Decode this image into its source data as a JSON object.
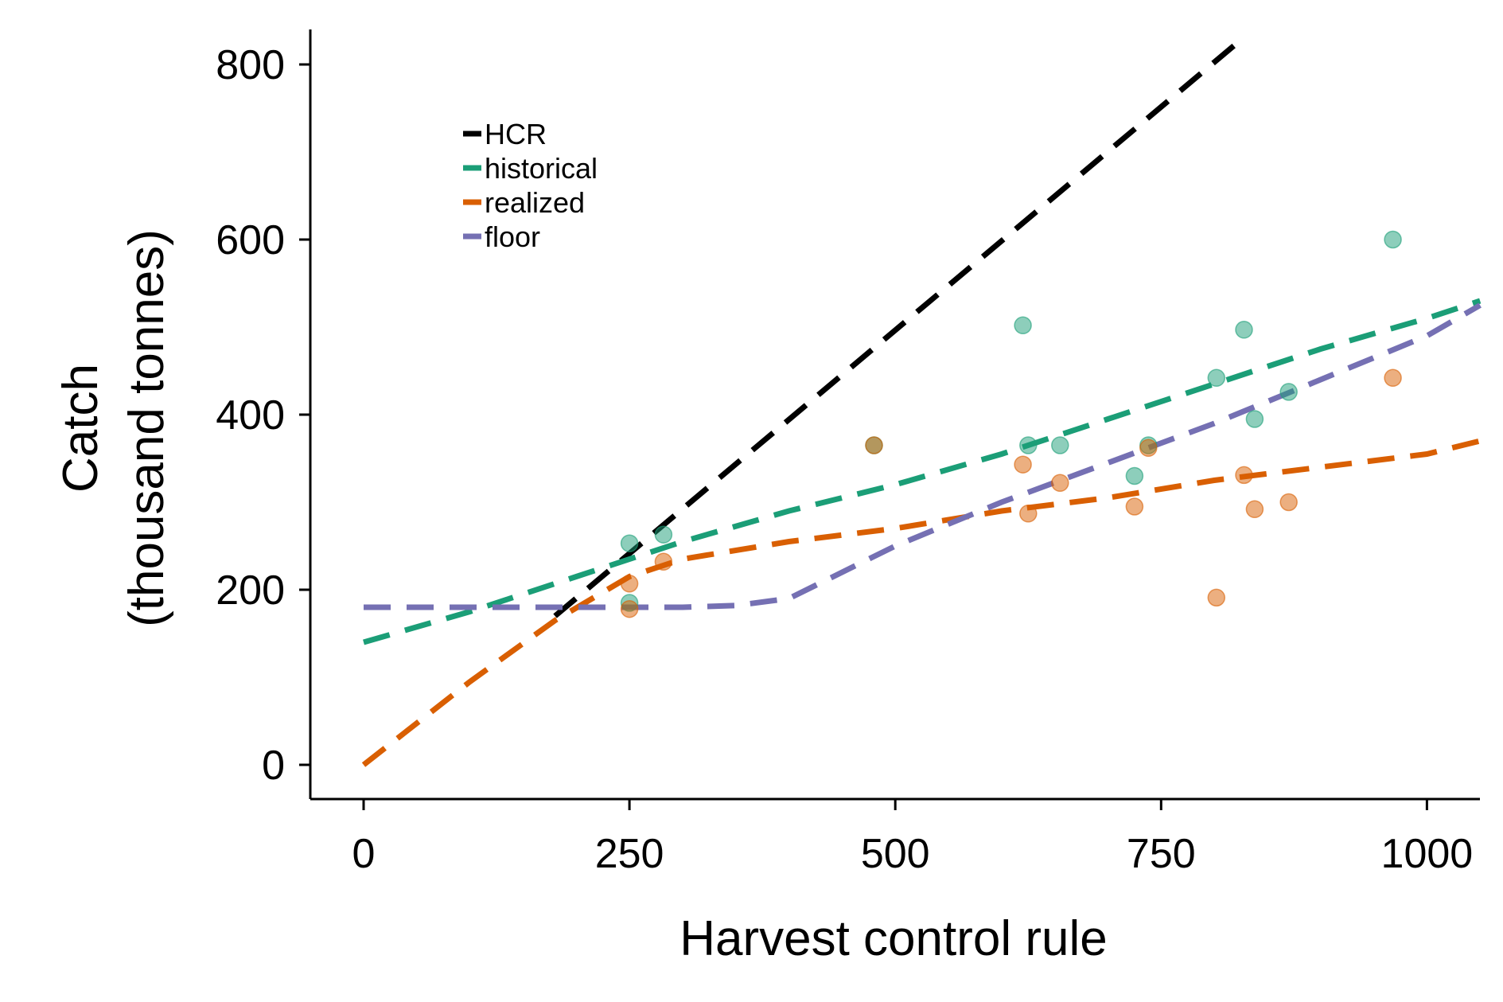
{
  "chart_data": {
    "type": "scatter",
    "xlabel": "Harvest control rule",
    "ylabel": [
      "Catch",
      "(thousand tonnes)"
    ],
    "xlim": [
      -25,
      1050
    ],
    "ylim": [
      -40,
      840
    ],
    "xticks": [
      0,
      250,
      500,
      750,
      1000
    ],
    "yticks": [
      0,
      200,
      400,
      600,
      800
    ],
    "grid": false,
    "legend_position": "top-left",
    "lines": [
      {
        "name": "HCR",
        "color": "#000000",
        "x": [
          180,
          822
        ],
        "y": [
          170,
          825
        ]
      },
      {
        "name": "historical",
        "color": "#1b9e77",
        "x": [
          0,
          100,
          200,
          300,
          400,
          500,
          600,
          700,
          800,
          900,
          1000,
          1050
        ],
        "y": [
          140,
          175,
          215,
          255,
          290,
          320,
          355,
          395,
          435,
          475,
          510,
          530
        ]
      },
      {
        "name": "realized",
        "color": "#d95f02",
        "x": [
          0,
          100,
          180,
          250,
          300,
          400,
          500,
          600,
          700,
          800,
          900,
          1000,
          1050
        ],
        "y": [
          0,
          95,
          165,
          215,
          235,
          255,
          270,
          290,
          305,
          325,
          340,
          355,
          370
        ]
      },
      {
        "name": "floor",
        "color": "#7570b3",
        "x": [
          0,
          100,
          200,
          300,
          350,
          400,
          450,
          500,
          600,
          700,
          800,
          900,
          1000,
          1050
        ],
        "y": [
          180,
          180,
          180,
          180,
          182,
          190,
          220,
          250,
          300,
          345,
          390,
          440,
          490,
          525
        ]
      }
    ],
    "points": [
      {
        "name": "historical",
        "color": "#1b9e77",
        "x": [
          250,
          250,
          282,
          480,
          620,
          625,
          655,
          725,
          738,
          802,
          828,
          838,
          870,
          968
        ],
        "y": [
          253,
          185,
          263,
          365,
          502,
          365,
          365,
          330,
          365,
          442,
          497,
          395,
          426,
          600
        ]
      },
      {
        "name": "realized",
        "color": "#d95f02",
        "x": [
          250,
          250,
          282,
          480,
          620,
          625,
          655,
          725,
          738,
          802,
          828,
          838,
          870,
          968
        ],
        "y": [
          207,
          178,
          232,
          365,
          343,
          287,
          322,
          295,
          362,
          191,
          331,
          292,
          300,
          442
        ]
      }
    ]
  }
}
